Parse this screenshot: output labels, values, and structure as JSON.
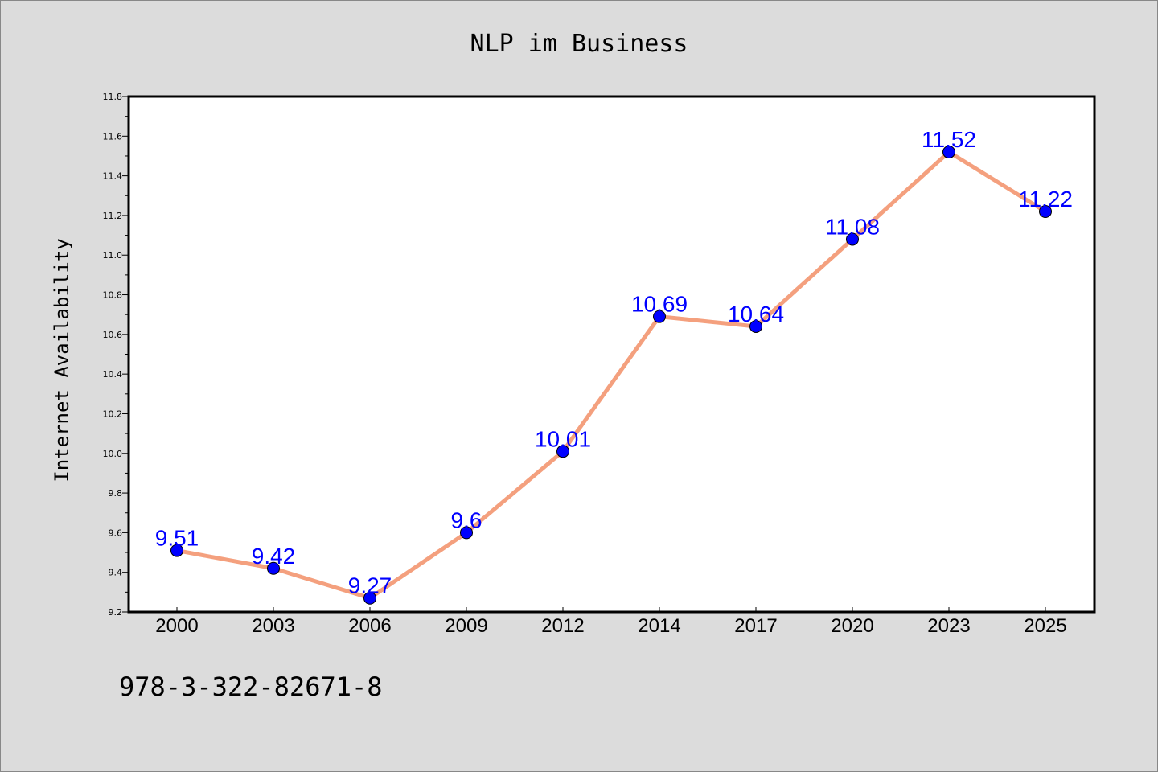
{
  "chart_data": {
    "type": "line",
    "title": "NLP im Business",
    "xlabel": "",
    "ylabel": "Internet Availability",
    "categories": [
      "2000",
      "2003",
      "2006",
      "2009",
      "2012",
      "2014",
      "2017",
      "2020",
      "2023",
      "2025"
    ],
    "values": [
      9.51,
      9.42,
      9.27,
      9.6,
      10.01,
      10.69,
      10.64,
      11.08,
      11.52,
      11.22
    ],
    "data_labels": [
      "9.51",
      "9.42",
      "9.27",
      "9.6",
      "10.01",
      "10.69",
      "10.64",
      "11.08",
      "11.52",
      "11.22"
    ],
    "ylim": [
      9.2,
      11.8
    ],
    "yticks": [
      "9.2",
      "9.4",
      "9.6",
      "9.8",
      "10.0",
      "10.2",
      "10.4",
      "10.6",
      "10.8",
      "11.0",
      "11.2",
      "11.4",
      "11.6",
      "11.8"
    ],
    "grid": false,
    "legend": "none",
    "colors": {
      "line": "#f4a07e",
      "marker": "#0000ff",
      "label": "#0000ff",
      "background": "#dcdcdc",
      "plot_background": "#ffffff"
    }
  },
  "footer": {
    "code": "978-3-322-82671-8"
  }
}
